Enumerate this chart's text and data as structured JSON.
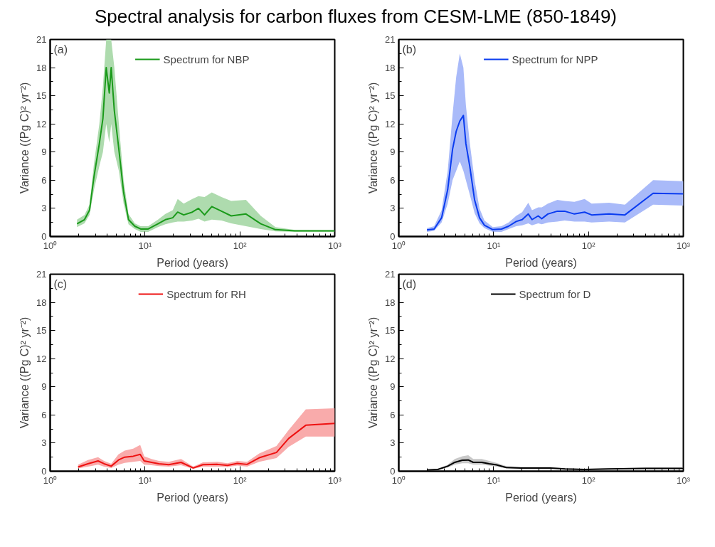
{
  "chart_data": [
    {
      "type": "line",
      "title": "Spectral analysis for carbon fluxes from CESM-LME (850-1849)",
      "annotations": [
        "(a)"
      ],
      "xlabel": "Period (years)",
      "ylabel": "Variance ((Pg C)² yr⁻²)",
      "log": "x",
      "legend": "top",
      "xlim": [
        1,
        1000
      ],
      "xticks": [
        {
          "value": 1,
          "label": "10⁰"
        },
        {
          "value": 10,
          "label": "10¹"
        },
        {
          "value": 100,
          "label": "10²"
        },
        {
          "value": 1000,
          "label": "10³"
        }
      ],
      "ylim": [
        0,
        21
      ],
      "yticks": [
        0,
        3,
        6,
        9,
        12,
        15,
        18,
        21
      ],
      "series": [
        {
          "name": "Spectrum for NBP",
          "color": "#1a9a1a",
          "x": [
            1.92,
            2.3,
            2.6,
            2.9,
            3.3,
            3.6,
            3.9,
            4.2,
            4.4,
            4.75,
            5.3,
            5.95,
            6.7,
            7.8,
            9.0,
            10.8,
            13.7,
            16.4,
            19.6,
            22.1,
            25.6,
            31.5,
            36.6,
            42.4,
            50.6,
            64,
            81,
            116,
            166,
            237,
            380,
            1000
          ],
          "values": [
            1.35,
            1.8,
            2.8,
            6.4,
            9.9,
            12.6,
            18.0,
            15.3,
            18.0,
            13.4,
            9.3,
            4.7,
            1.8,
            1.1,
            0.8,
            0.8,
            1.35,
            1.8,
            2.0,
            2.6,
            2.3,
            2.6,
            3.0,
            2.3,
            3.2,
            2.7,
            2.2,
            2.4,
            1.35,
            0.73,
            0.6,
            0.6
          ],
          "lower": [
            1.0,
            1.4,
            2.3,
            5.0,
            7.5,
            9,
            12,
            10,
            12,
            9,
            7,
            3.5,
            1.3,
            0.8,
            0.5,
            0.5,
            1.0,
            1.3,
            1.5,
            1.6,
            1.6,
            1.7,
            1.9,
            1.6,
            1.8,
            1.7,
            1.4,
            1.1,
            0.8,
            0.55,
            0.5,
            0.5
          ],
          "upper": [
            1.8,
            2.3,
            3.4,
            7.8,
            12,
            16,
            21,
            21,
            21,
            18,
            12,
            6,
            2.4,
            1.4,
            1.1,
            1.1,
            1.8,
            2.4,
            2.8,
            4.0,
            3.5,
            4.0,
            4.3,
            4.2,
            4.7,
            4.2,
            3.8,
            3.9,
            2.2,
            1.0,
            0.7,
            0.65
          ]
        }
      ]
    },
    {
      "type": "line",
      "annotations": [
        "(b)"
      ],
      "xlabel": "Period (years)",
      "ylabel": "Variance ((Pg C)² yr⁻²)",
      "log": "x",
      "legend": "top",
      "xlim": [
        1,
        1000
      ],
      "xticks": [
        {
          "value": 1,
          "label": "10⁰"
        },
        {
          "value": 10,
          "label": "10¹"
        },
        {
          "value": 100,
          "label": "10²"
        },
        {
          "value": 1000,
          "label": "10³"
        }
      ],
      "ylim": [
        0,
        21
      ],
      "yticks": [
        0,
        3,
        6,
        9,
        12,
        15,
        18,
        21
      ],
      "series": [
        {
          "name": "Spectrum for NPP",
          "color": "#0a3cf0",
          "x": [
            1.98,
            2.36,
            2.83,
            3.28,
            3.69,
            4.03,
            4.4,
            4.8,
            5.1,
            5.6,
            6.3,
            7.1,
            8.0,
            9.8,
            12.1,
            14.4,
            17.3,
            20,
            23.2,
            25.4,
            29.5,
            32.2,
            37.3,
            47,
            56,
            71,
            91,
            108,
            165,
            242,
            480,
            1000
          ],
          "values": [
            0.7,
            0.8,
            2.0,
            5.0,
            9.3,
            11.2,
            12.3,
            12.9,
            9.9,
            7.5,
            3.9,
            2.0,
            1.2,
            0.73,
            0.8,
            1.1,
            1.6,
            1.8,
            2.4,
            1.8,
            2.2,
            1.9,
            2.4,
            2.7,
            2.7,
            2.4,
            2.6,
            2.3,
            2.4,
            2.3,
            4.6,
            4.55
          ],
          "lower": [
            0.5,
            0.6,
            1.5,
            3.5,
            6,
            7,
            8,
            7,
            6,
            4.5,
            2.5,
            1.4,
            0.9,
            0.5,
            0.5,
            0.8,
            1.1,
            1.2,
            1.4,
            1.2,
            1.4,
            1.3,
            1.5,
            1.6,
            1.7,
            1.6,
            1.6,
            1.5,
            1.6,
            1.5,
            3.4,
            3.3
          ],
          "upper": [
            0.9,
            1.1,
            2.8,
            7,
            13,
            17,
            19.5,
            18,
            14,
            10,
            6,
            3,
            1.7,
            1.0,
            1.1,
            1.5,
            2.2,
            2.6,
            3.6,
            2.8,
            3.1,
            3.1,
            3.5,
            3.9,
            3.8,
            3.7,
            4.0,
            3.5,
            3.6,
            3.4,
            6.0,
            5.9
          ]
        }
      ]
    },
    {
      "type": "line",
      "annotations": [
        "(c)"
      ],
      "xlabel": "Period (years)",
      "ylabel": "Variance ((Pg C)² yr⁻²)",
      "log": "x",
      "legend": "top",
      "xlim": [
        1,
        1000
      ],
      "xticks": [
        {
          "value": 1,
          "label": "10⁰"
        },
        {
          "value": 10,
          "label": "10¹"
        },
        {
          "value": 100,
          "label": "10²"
        },
        {
          "value": 1000,
          "label": "10³"
        }
      ],
      "ylim": [
        0,
        21
      ],
      "yticks": [
        0,
        3,
        6,
        9,
        12,
        15,
        18,
        21
      ],
      "series": [
        {
          "name": "Spectrum for RH",
          "color": "#ee1111",
          "x": [
            1.97,
            2.5,
            3.2,
            3.7,
            4.4,
            5.25,
            6.1,
            7.5,
            8.9,
            9.8,
            11.7,
            14.0,
            17.8,
            24,
            32.2,
            40.8,
            58,
            74,
            94,
            119,
            160,
            243,
            327,
            495,
            1000
          ],
          "values": [
            0.46,
            0.8,
            1.1,
            0.8,
            0.54,
            1.2,
            1.5,
            1.6,
            1.8,
            1.1,
            0.95,
            0.8,
            0.7,
            0.95,
            0.35,
            0.7,
            0.73,
            0.62,
            0.84,
            0.73,
            1.44,
            2.0,
            3.5,
            4.9,
            5.1
          ],
          "lower": [
            0.3,
            0.5,
            0.7,
            0.5,
            0.35,
            0.7,
            0.9,
            1.0,
            1.1,
            0.7,
            0.65,
            0.55,
            0.5,
            0.65,
            0.25,
            0.5,
            0.5,
            0.45,
            0.6,
            0.5,
            1.0,
            1.4,
            2.6,
            3.7,
            3.7
          ],
          "upper": [
            0.7,
            1.2,
            1.5,
            1.1,
            0.8,
            1.8,
            2.2,
            2.4,
            2.8,
            1.6,
            1.3,
            1.1,
            1.0,
            1.3,
            0.5,
            0.95,
            1.0,
            0.85,
            1.1,
            1.0,
            1.9,
            2.7,
            4.4,
            6.6,
            6.7
          ]
        }
      ]
    },
    {
      "type": "line",
      "annotations": [
        "(d)"
      ],
      "xlabel": "Period (years)",
      "ylabel": "Variance ((Pg C)² yr⁻²)",
      "log": "x",
      "legend": "top",
      "xlim": [
        1,
        1000
      ],
      "xticks": [
        {
          "value": 1,
          "label": "10⁰"
        },
        {
          "value": 10,
          "label": "10¹"
        },
        {
          "value": 100,
          "label": "10²"
        },
        {
          "value": 1000,
          "label": "10³"
        }
      ],
      "ylim": [
        0,
        21
      ],
      "yticks": [
        0,
        3,
        6,
        9,
        12,
        15,
        18,
        21
      ],
      "series": [
        {
          "name": "Spectrum for D",
          "color": "#000000",
          "x": [
            1.98,
            2.58,
            3.28,
            3.9,
            4.67,
            5.4,
            6.1,
            7.5,
            9.0,
            10.7,
            13.6,
            19.4,
            27.8,
            39.6,
            56.6,
            91,
            164,
            400,
            1000
          ],
          "values": [
            0.14,
            0.19,
            0.54,
            0.95,
            1.17,
            1.2,
            0.95,
            0.95,
            0.8,
            0.68,
            0.4,
            0.35,
            0.35,
            0.35,
            0.24,
            0.19,
            0.24,
            0.3,
            0.3
          ],
          "lower": [
            0.1,
            0.14,
            0.4,
            0.7,
            0.85,
            0.85,
            0.7,
            0.7,
            0.6,
            0.5,
            0.3,
            0.27,
            0.27,
            0.27,
            0.18,
            0.14,
            0.18,
            0.22,
            0.22
          ],
          "upper": [
            0.18,
            0.25,
            0.7,
            1.3,
            1.6,
            1.7,
            1.3,
            1.3,
            1.1,
            0.9,
            0.55,
            0.45,
            0.45,
            0.45,
            0.32,
            0.25,
            0.32,
            0.4,
            0.4
          ]
        }
      ]
    }
  ]
}
